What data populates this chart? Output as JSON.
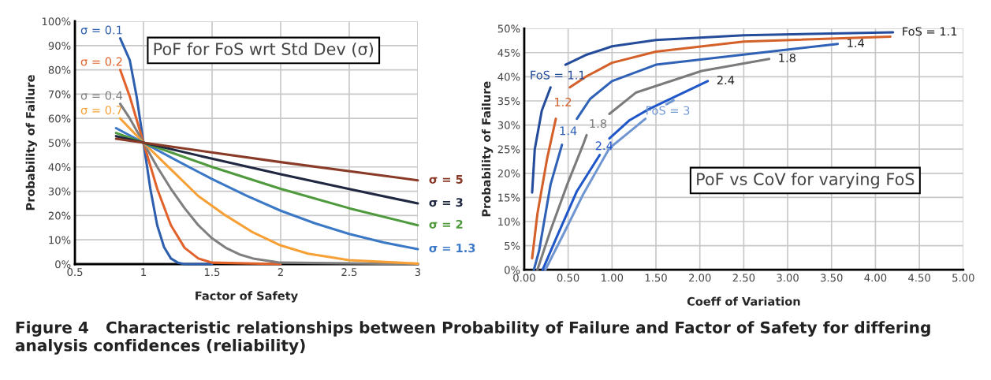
{
  "chart_data": [
    {
      "type": "line",
      "title": "PoF for FoS wrt Std Dev (σ)",
      "xlabel": "Factor of Safety",
      "ylabel": "Probability of Failure",
      "xlim": [
        0.5,
        3
      ],
      "xticks": [
        {
          "value": 0.5,
          "label": "0.5"
        },
        1,
        1.5,
        2,
        2.5,
        3
      ],
      "ylim": [
        0,
        100
      ],
      "yticks": [
        {
          "value": 0,
          "label": "0%"
        },
        {
          "value": 10,
          "label": "10%"
        },
        {
          "value": 20,
          "label": "20%"
        },
        {
          "value": 30,
          "label": "30%"
        },
        {
          "value": 40,
          "label": "40%"
        },
        {
          "value": 50,
          "label": "50%"
        },
        {
          "value": 60,
          "label": "60%"
        },
        {
          "value": 70,
          "label": "70%"
        },
        {
          "value": 80,
          "label": "80%"
        },
        {
          "value": 90,
          "label": "90%"
        },
        {
          "value": 100,
          "label": "100%"
        }
      ],
      "grid": true,
      "legend": false,
      "marker": "none",
      "line_style": "solid",
      "series": [
        {
          "name": "σ = 0.1",
          "color": "#2e5fae",
          "x": [
            0.83,
            0.9,
            0.95,
            1.0,
            1.05,
            1.1,
            1.15,
            1.2,
            1.25,
            1.3,
            1.5
          ],
          "values": [
            93,
            84,
            69,
            50,
            31,
            16,
            7,
            2.3,
            0.6,
            0,
            0
          ]
        },
        {
          "name": "σ = 0.2",
          "color": "#e2622b",
          "x": [
            0.83,
            0.9,
            1,
            1.1,
            1.2,
            1.3,
            1.4,
            1.5,
            2
          ],
          "values": [
            80,
            69,
            50,
            31,
            16,
            6.7,
            2.3,
            0.6,
            0
          ]
        },
        {
          "name": "σ = 0.4",
          "color": "#7f7f7f",
          "x": [
            0.83,
            0.9,
            1,
            1.1,
            1.2,
            1.3,
            1.4,
            1.5,
            1.6,
            1.7,
            1.8,
            2,
            3
          ],
          "values": [
            66,
            60,
            50,
            40,
            31,
            23,
            16,
            10.6,
            6.7,
            4,
            2.3,
            0.6,
            0
          ]
        },
        {
          "name": "σ = 0.7",
          "color": "#f7a035",
          "x": [
            0.83,
            1,
            1.2,
            1.4,
            1.6,
            1.8,
            2,
            2.2,
            2.5,
            3
          ],
          "values": [
            60,
            50,
            39,
            28,
            20,
            13,
            7.7,
            4.3,
            1.6,
            0.2
          ]
        },
        {
          "name": "σ = 1.3",
          "color": "#3b78c6",
          "x": [
            0.8,
            1,
            1.25,
            1.5,
            1.75,
            2,
            2.25,
            2.5,
            2.75,
            3
          ],
          "values": [
            56,
            50,
            42.4,
            35,
            28.2,
            22,
            16.8,
            12.4,
            8.9,
            6.2
          ]
        },
        {
          "name": "σ = 2",
          "color": "#4e9a3c",
          "x": [
            0.8,
            1,
            1.5,
            2,
            2.5,
            3
          ],
          "values": [
            54,
            50,
            40,
            31,
            23,
            16
          ]
        },
        {
          "name": "σ = 3",
          "color": "#1f2840",
          "x": [
            0.8,
            1,
            1.5,
            2,
            2.5,
            3
          ],
          "values": [
            52.7,
            50,
            43.4,
            37,
            30.9,
            25
          ]
        },
        {
          "name": "σ = 5",
          "color": "#8a3b28",
          "x": [
            0.8,
            1,
            2,
            3
          ],
          "values": [
            51.6,
            50,
            42,
            34.5
          ]
        }
      ],
      "annotations": [
        "Figure 4   Characteristic relationships between Probability of Failure and Factor of Safety for differing analysis confidences (reliability)"
      ]
    },
    {
      "type": "line",
      "title": "PoF vs CoV for varying FoS",
      "xlabel": "Coeff of Variation",
      "ylabel": "Probability of Failure",
      "xlim": [
        0,
        5
      ],
      "xticks": [
        {
          "value": 0,
          "label": "0.00"
        },
        {
          "value": 0.5,
          "label": "0.50"
        },
        {
          "value": 1,
          "label": "1.00"
        },
        {
          "value": 1.5,
          "label": "1.50"
        },
        {
          "value": 2,
          "label": "2.00"
        },
        {
          "value": 2.5,
          "label": "2.50"
        },
        {
          "value": 3,
          "label": "3.00"
        },
        {
          "value": 3.5,
          "label": "3.50"
        },
        {
          "value": 4,
          "label": "4.00"
        },
        {
          "value": 4.5,
          "label": "4.50"
        },
        {
          "value": 5,
          "label": "5.00"
        }
      ],
      "ylim": [
        0,
        50
      ],
      "yticks": [
        {
          "value": 0,
          "label": "0%"
        },
        {
          "value": 5,
          "label": "5%"
        },
        {
          "value": 10,
          "label": "10%"
        },
        {
          "value": 15,
          "label": "15%"
        },
        {
          "value": 20,
          "label": "20%"
        },
        {
          "value": 25,
          "label": "25%"
        },
        {
          "value": 30,
          "label": "30%"
        },
        {
          "value": 35,
          "label": "35%"
        },
        {
          "value": 40,
          "label": "40%"
        },
        {
          "value": 45,
          "label": "45%"
        },
        {
          "value": 50,
          "label": "50%"
        }
      ],
      "grid": true,
      "legend": false,
      "marker": "none",
      "line_style": "solid",
      "series": [
        {
          "name": "FoS = 1.1",
          "color": "#244c9a",
          "x": [
            0.09,
            0.12,
            0.2,
            0.3,
            0.38,
            0.47,
            0.7,
            1,
            1.5,
            2.5,
            4.2
          ],
          "values": [
            16,
            25,
            33,
            37.8,
            null,
            42.5,
            44.5,
            46.3,
            47.6,
            48.6,
            49.2
          ]
        },
        {
          "name": "1.2",
          "color": "#d4602a",
          "x": [
            0.09,
            0.15,
            0.26,
            0.36,
            0.44,
            0.52,
            0.71,
            1.0,
            1.5,
            2.5,
            4.17
          ],
          "values": [
            2.4,
            11.6,
            23,
            31.3,
            null,
            37.8,
            40.1,
            42.9,
            45.2,
            47.3,
            48.3
          ]
        },
        {
          "name": "1.4",
          "color": "#2f62b6",
          "x": [
            0.11,
            0.17,
            0.3,
            0.43,
            0.5,
            0.6,
            0.75,
            1.0,
            1.5,
            2.5,
            3.57
          ],
          "values": [
            0,
            4,
            17.7,
            25.9,
            null,
            31.3,
            35.4,
            39.1,
            42.5,
            44.6,
            46.8
          ]
        },
        {
          "name": "1.8",
          "color": "#7b7b7b",
          "x": [
            0.15,
            0.3,
            0.49,
            0.67,
            0.71,
            0.84,
            0.97,
            1.27,
            2.02,
            2.79
          ],
          "values": [
            0,
            8.2,
            17.7,
            25.9,
            27.9,
            null,
            32.3,
            36.7,
            41.2,
            43.7
          ]
        },
        {
          "name": "2.4",
          "color": "#1f56c8",
          "x": [
            0.21,
            0.37,
            0.6,
            0.86,
            0.91,
            0.97,
            1.2,
            1.42,
            2.09
          ],
          "values": [
            0,
            6.8,
            16.3,
            23.8,
            null,
            27.2,
            31,
            33.3,
            39.1
          ]
        },
        {
          "name": "FoS = 3",
          "color": "#7096d2",
          "x": [
            0.24,
            0.45,
            0.67,
            0.97,
            1.2,
            1.38,
            1.52,
            1.62,
            1.7
          ],
          "values": [
            0,
            7.5,
            15.6,
            25.2,
            28.6,
            31.3,
            null,
            34.3,
            35.1
          ]
        }
      ],
      "annotations": [
        {
          "text": "FoS = 1.1",
          "x": 4.2,
          "y": 49.2
        },
        {
          "text": "1.4",
          "x": 3.57,
          "y": 46.8
        },
        {
          "text": "1.8",
          "x": 2.79,
          "y": 43.7
        },
        {
          "text": "2.4",
          "x": 2.09,
          "y": 39.1
        }
      ]
    }
  ]
}
